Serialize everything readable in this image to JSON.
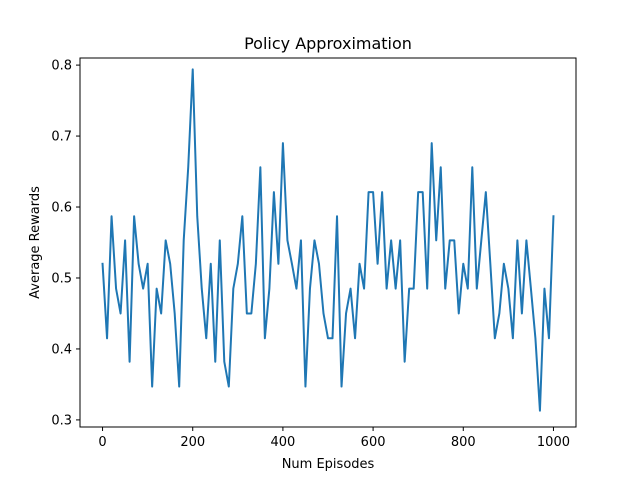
{
  "chart_data": {
    "type": "line",
    "title": "Policy Approximation",
    "xlabel": "Num Episodes",
    "ylabel": "Average Rewards",
    "xlim": [
      -50,
      1050
    ],
    "ylim": [
      0.29,
      0.81
    ],
    "xticks": [
      0,
      200,
      400,
      600,
      800,
      1000
    ],
    "xtick_labels": [
      "0",
      "200",
      "400",
      "600",
      "800",
      "1000"
    ],
    "yticks": [
      0.3,
      0.4,
      0.5,
      0.6,
      0.7,
      0.8
    ],
    "ytick_labels": [
      "0.3",
      "0.4",
      "0.5",
      "0.6",
      "0.7",
      "0.8"
    ],
    "grid": false,
    "legend": "none",
    "series": [
      {
        "color": "#1f77b4",
        "x": [
          0,
          10,
          20,
          30,
          40,
          50,
          60,
          70,
          80,
          90,
          100,
          110,
          120,
          130,
          140,
          150,
          160,
          170,
          180,
          190,
          200,
          210,
          220,
          230,
          240,
          250,
          260,
          270,
          280,
          290,
          300,
          310,
          320,
          330,
          340,
          350,
          360,
          370,
          380,
          390,
          400,
          410,
          420,
          430,
          440,
          450,
          460,
          470,
          480,
          490,
          500,
          510,
          520,
          530,
          540,
          550,
          560,
          570,
          580,
          590,
          600,
          610,
          620,
          630,
          640,
          650,
          660,
          670,
          680,
          690,
          700,
          710,
          720,
          730,
          740,
          750,
          760,
          770,
          780,
          790,
          800,
          810,
          820,
          830,
          840,
          850,
          860,
          870,
          880,
          890,
          900,
          910,
          920,
          930,
          940,
          950,
          960,
          970,
          980,
          990,
          1000
        ],
        "y": [
          0.52,
          0.415,
          0.587,
          0.485,
          0.45,
          0.553,
          0.382,
          0.587,
          0.52,
          0.485,
          0.52,
          0.347,
          0.485,
          0.45,
          0.553,
          0.52,
          0.45,
          0.347,
          0.553,
          0.656,
          0.794,
          0.587,
          0.485,
          0.415,
          0.52,
          0.382,
          0.553,
          0.382,
          0.347,
          0.485,
          0.52,
          0.587,
          0.45,
          0.45,
          0.52,
          0.656,
          0.415,
          0.485,
          0.621,
          0.52,
          0.69,
          0.553,
          0.52,
          0.485,
          0.553,
          0.347,
          0.485,
          0.553,
          0.52,
          0.45,
          0.415,
          0.415,
          0.587,
          0.347,
          0.45,
          0.485,
          0.415,
          0.52,
          0.485,
          0.621,
          0.621,
          0.52,
          0.621,
          0.485,
          0.553,
          0.485,
          0.553,
          0.382,
          0.485,
          0.485,
          0.621,
          0.621,
          0.485,
          0.69,
          0.553,
          0.656,
          0.485,
          0.553,
          0.553,
          0.45,
          0.52,
          0.485,
          0.656,
          0.485,
          0.553,
          0.621,
          0.52,
          0.415,
          0.45,
          0.52,
          0.485,
          0.415,
          0.553,
          0.45,
          0.553,
          0.485,
          0.415,
          0.313,
          0.485,
          0.415,
          0.587
        ]
      }
    ]
  }
}
